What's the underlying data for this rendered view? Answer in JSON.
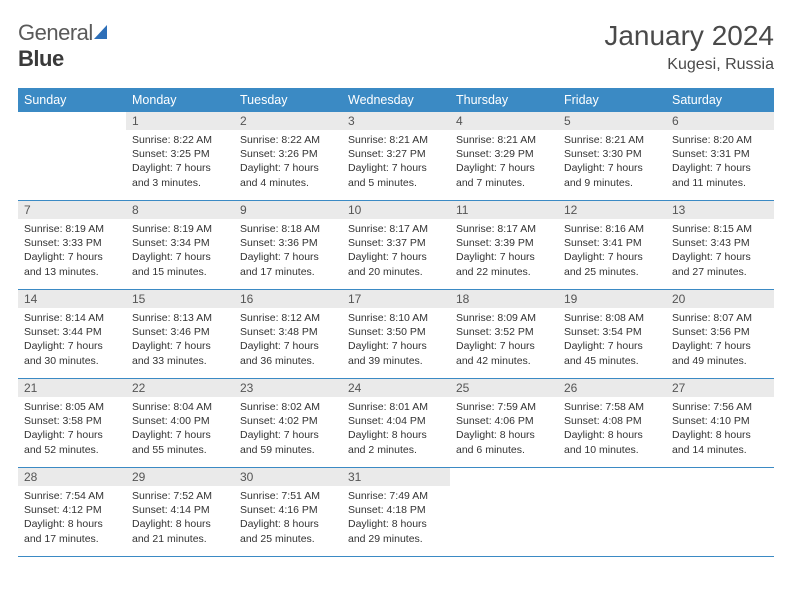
{
  "branding": {
    "name_part1": "General",
    "name_part2": "Blue"
  },
  "title": "January 2024",
  "location": "Kugesi, Russia",
  "colors": {
    "header_bg": "#3b8ac4",
    "header_text": "#ffffff",
    "daynum_bg": "#eaeaea",
    "border": "#3b8ac4",
    "body_text": "#333333"
  },
  "fonts": {
    "title_size_pt": 21,
    "location_size_pt": 12,
    "dayheader_size_pt": 9,
    "cell_size_pt": 8
  },
  "weekdays": [
    "Sunday",
    "Monday",
    "Tuesday",
    "Wednesday",
    "Thursday",
    "Friday",
    "Saturday"
  ],
  "weeks": [
    [
      {
        "n": "",
        "sr": "",
        "ss": "",
        "dl": ""
      },
      {
        "n": "1",
        "sr": "Sunrise: 8:22 AM",
        "ss": "Sunset: 3:25 PM",
        "dl": "Daylight: 7 hours and 3 minutes."
      },
      {
        "n": "2",
        "sr": "Sunrise: 8:22 AM",
        "ss": "Sunset: 3:26 PM",
        "dl": "Daylight: 7 hours and 4 minutes."
      },
      {
        "n": "3",
        "sr": "Sunrise: 8:21 AM",
        "ss": "Sunset: 3:27 PM",
        "dl": "Daylight: 7 hours and 5 minutes."
      },
      {
        "n": "4",
        "sr": "Sunrise: 8:21 AM",
        "ss": "Sunset: 3:29 PM",
        "dl": "Daylight: 7 hours and 7 minutes."
      },
      {
        "n": "5",
        "sr": "Sunrise: 8:21 AM",
        "ss": "Sunset: 3:30 PM",
        "dl": "Daylight: 7 hours and 9 minutes."
      },
      {
        "n": "6",
        "sr": "Sunrise: 8:20 AM",
        "ss": "Sunset: 3:31 PM",
        "dl": "Daylight: 7 hours and 11 minutes."
      }
    ],
    [
      {
        "n": "7",
        "sr": "Sunrise: 8:19 AM",
        "ss": "Sunset: 3:33 PM",
        "dl": "Daylight: 7 hours and 13 minutes."
      },
      {
        "n": "8",
        "sr": "Sunrise: 8:19 AM",
        "ss": "Sunset: 3:34 PM",
        "dl": "Daylight: 7 hours and 15 minutes."
      },
      {
        "n": "9",
        "sr": "Sunrise: 8:18 AM",
        "ss": "Sunset: 3:36 PM",
        "dl": "Daylight: 7 hours and 17 minutes."
      },
      {
        "n": "10",
        "sr": "Sunrise: 8:17 AM",
        "ss": "Sunset: 3:37 PM",
        "dl": "Daylight: 7 hours and 20 minutes."
      },
      {
        "n": "11",
        "sr": "Sunrise: 8:17 AM",
        "ss": "Sunset: 3:39 PM",
        "dl": "Daylight: 7 hours and 22 minutes."
      },
      {
        "n": "12",
        "sr": "Sunrise: 8:16 AM",
        "ss": "Sunset: 3:41 PM",
        "dl": "Daylight: 7 hours and 25 minutes."
      },
      {
        "n": "13",
        "sr": "Sunrise: 8:15 AM",
        "ss": "Sunset: 3:43 PM",
        "dl": "Daylight: 7 hours and 27 minutes."
      }
    ],
    [
      {
        "n": "14",
        "sr": "Sunrise: 8:14 AM",
        "ss": "Sunset: 3:44 PM",
        "dl": "Daylight: 7 hours and 30 minutes."
      },
      {
        "n": "15",
        "sr": "Sunrise: 8:13 AM",
        "ss": "Sunset: 3:46 PM",
        "dl": "Daylight: 7 hours and 33 minutes."
      },
      {
        "n": "16",
        "sr": "Sunrise: 8:12 AM",
        "ss": "Sunset: 3:48 PM",
        "dl": "Daylight: 7 hours and 36 minutes."
      },
      {
        "n": "17",
        "sr": "Sunrise: 8:10 AM",
        "ss": "Sunset: 3:50 PM",
        "dl": "Daylight: 7 hours and 39 minutes."
      },
      {
        "n": "18",
        "sr": "Sunrise: 8:09 AM",
        "ss": "Sunset: 3:52 PM",
        "dl": "Daylight: 7 hours and 42 minutes."
      },
      {
        "n": "19",
        "sr": "Sunrise: 8:08 AM",
        "ss": "Sunset: 3:54 PM",
        "dl": "Daylight: 7 hours and 45 minutes."
      },
      {
        "n": "20",
        "sr": "Sunrise: 8:07 AM",
        "ss": "Sunset: 3:56 PM",
        "dl": "Daylight: 7 hours and 49 minutes."
      }
    ],
    [
      {
        "n": "21",
        "sr": "Sunrise: 8:05 AM",
        "ss": "Sunset: 3:58 PM",
        "dl": "Daylight: 7 hours and 52 minutes."
      },
      {
        "n": "22",
        "sr": "Sunrise: 8:04 AM",
        "ss": "Sunset: 4:00 PM",
        "dl": "Daylight: 7 hours and 55 minutes."
      },
      {
        "n": "23",
        "sr": "Sunrise: 8:02 AM",
        "ss": "Sunset: 4:02 PM",
        "dl": "Daylight: 7 hours and 59 minutes."
      },
      {
        "n": "24",
        "sr": "Sunrise: 8:01 AM",
        "ss": "Sunset: 4:04 PM",
        "dl": "Daylight: 8 hours and 2 minutes."
      },
      {
        "n": "25",
        "sr": "Sunrise: 7:59 AM",
        "ss": "Sunset: 4:06 PM",
        "dl": "Daylight: 8 hours and 6 minutes."
      },
      {
        "n": "26",
        "sr": "Sunrise: 7:58 AM",
        "ss": "Sunset: 4:08 PM",
        "dl": "Daylight: 8 hours and 10 minutes."
      },
      {
        "n": "27",
        "sr": "Sunrise: 7:56 AM",
        "ss": "Sunset: 4:10 PM",
        "dl": "Daylight: 8 hours and 14 minutes."
      }
    ],
    [
      {
        "n": "28",
        "sr": "Sunrise: 7:54 AM",
        "ss": "Sunset: 4:12 PM",
        "dl": "Daylight: 8 hours and 17 minutes."
      },
      {
        "n": "29",
        "sr": "Sunrise: 7:52 AM",
        "ss": "Sunset: 4:14 PM",
        "dl": "Daylight: 8 hours and 21 minutes."
      },
      {
        "n": "30",
        "sr": "Sunrise: 7:51 AM",
        "ss": "Sunset: 4:16 PM",
        "dl": "Daylight: 8 hours and 25 minutes."
      },
      {
        "n": "31",
        "sr": "Sunrise: 7:49 AM",
        "ss": "Sunset: 4:18 PM",
        "dl": "Daylight: 8 hours and 29 minutes."
      },
      {
        "n": "",
        "sr": "",
        "ss": "",
        "dl": ""
      },
      {
        "n": "",
        "sr": "",
        "ss": "",
        "dl": ""
      },
      {
        "n": "",
        "sr": "",
        "ss": "",
        "dl": ""
      }
    ]
  ]
}
